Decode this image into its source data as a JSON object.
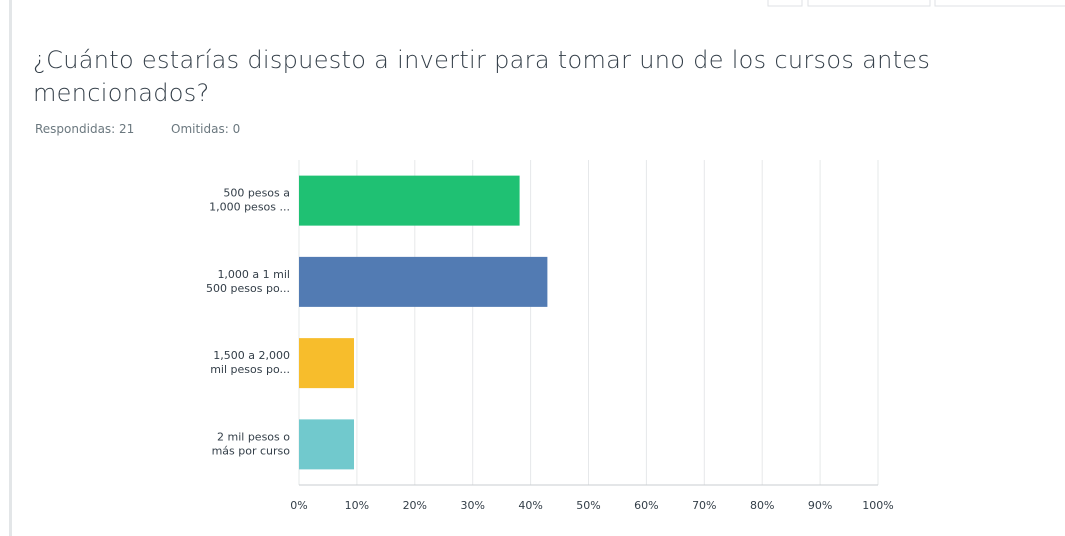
{
  "chart_data": {
    "type": "bar",
    "orientation": "horizontal",
    "title": "¿Cuánto estarías dispuesto a invertir para tomar uno de los cursos antes mencionados?",
    "answered": "Respondidas: 21",
    "skipped": "Omitidas: 0",
    "categories": [
      [
        "500 pesos a",
        "1,000 pesos ..."
      ],
      [
        "1,000 a 1 mil",
        "500 pesos po..."
      ],
      [
        "1,500 a 2,000",
        "mil pesos po..."
      ],
      [
        "2 mil pesos o",
        "más por curso"
      ]
    ],
    "values": [
      38.1,
      42.9,
      9.5,
      9.5
    ],
    "colors": [
      "#1fc173",
      "#527bb3",
      "#f7bd2c",
      "#71c9cd"
    ],
    "xlim": [
      0,
      100
    ],
    "xticks": [
      {
        "value": 0,
        "label": "0%"
      },
      {
        "value": 10,
        "label": "10%"
      },
      {
        "value": 20,
        "label": "20%"
      },
      {
        "value": 30,
        "label": "30%"
      },
      {
        "value": 40,
        "label": "40%"
      },
      {
        "value": 50,
        "label": "50%"
      },
      {
        "value": 60,
        "label": "60%"
      },
      {
        "value": 70,
        "label": "70%"
      },
      {
        "value": 80,
        "label": "80%"
      },
      {
        "value": 90,
        "label": "90%"
      },
      {
        "value": 100,
        "label": "100%"
      }
    ],
    "grid": true
  }
}
